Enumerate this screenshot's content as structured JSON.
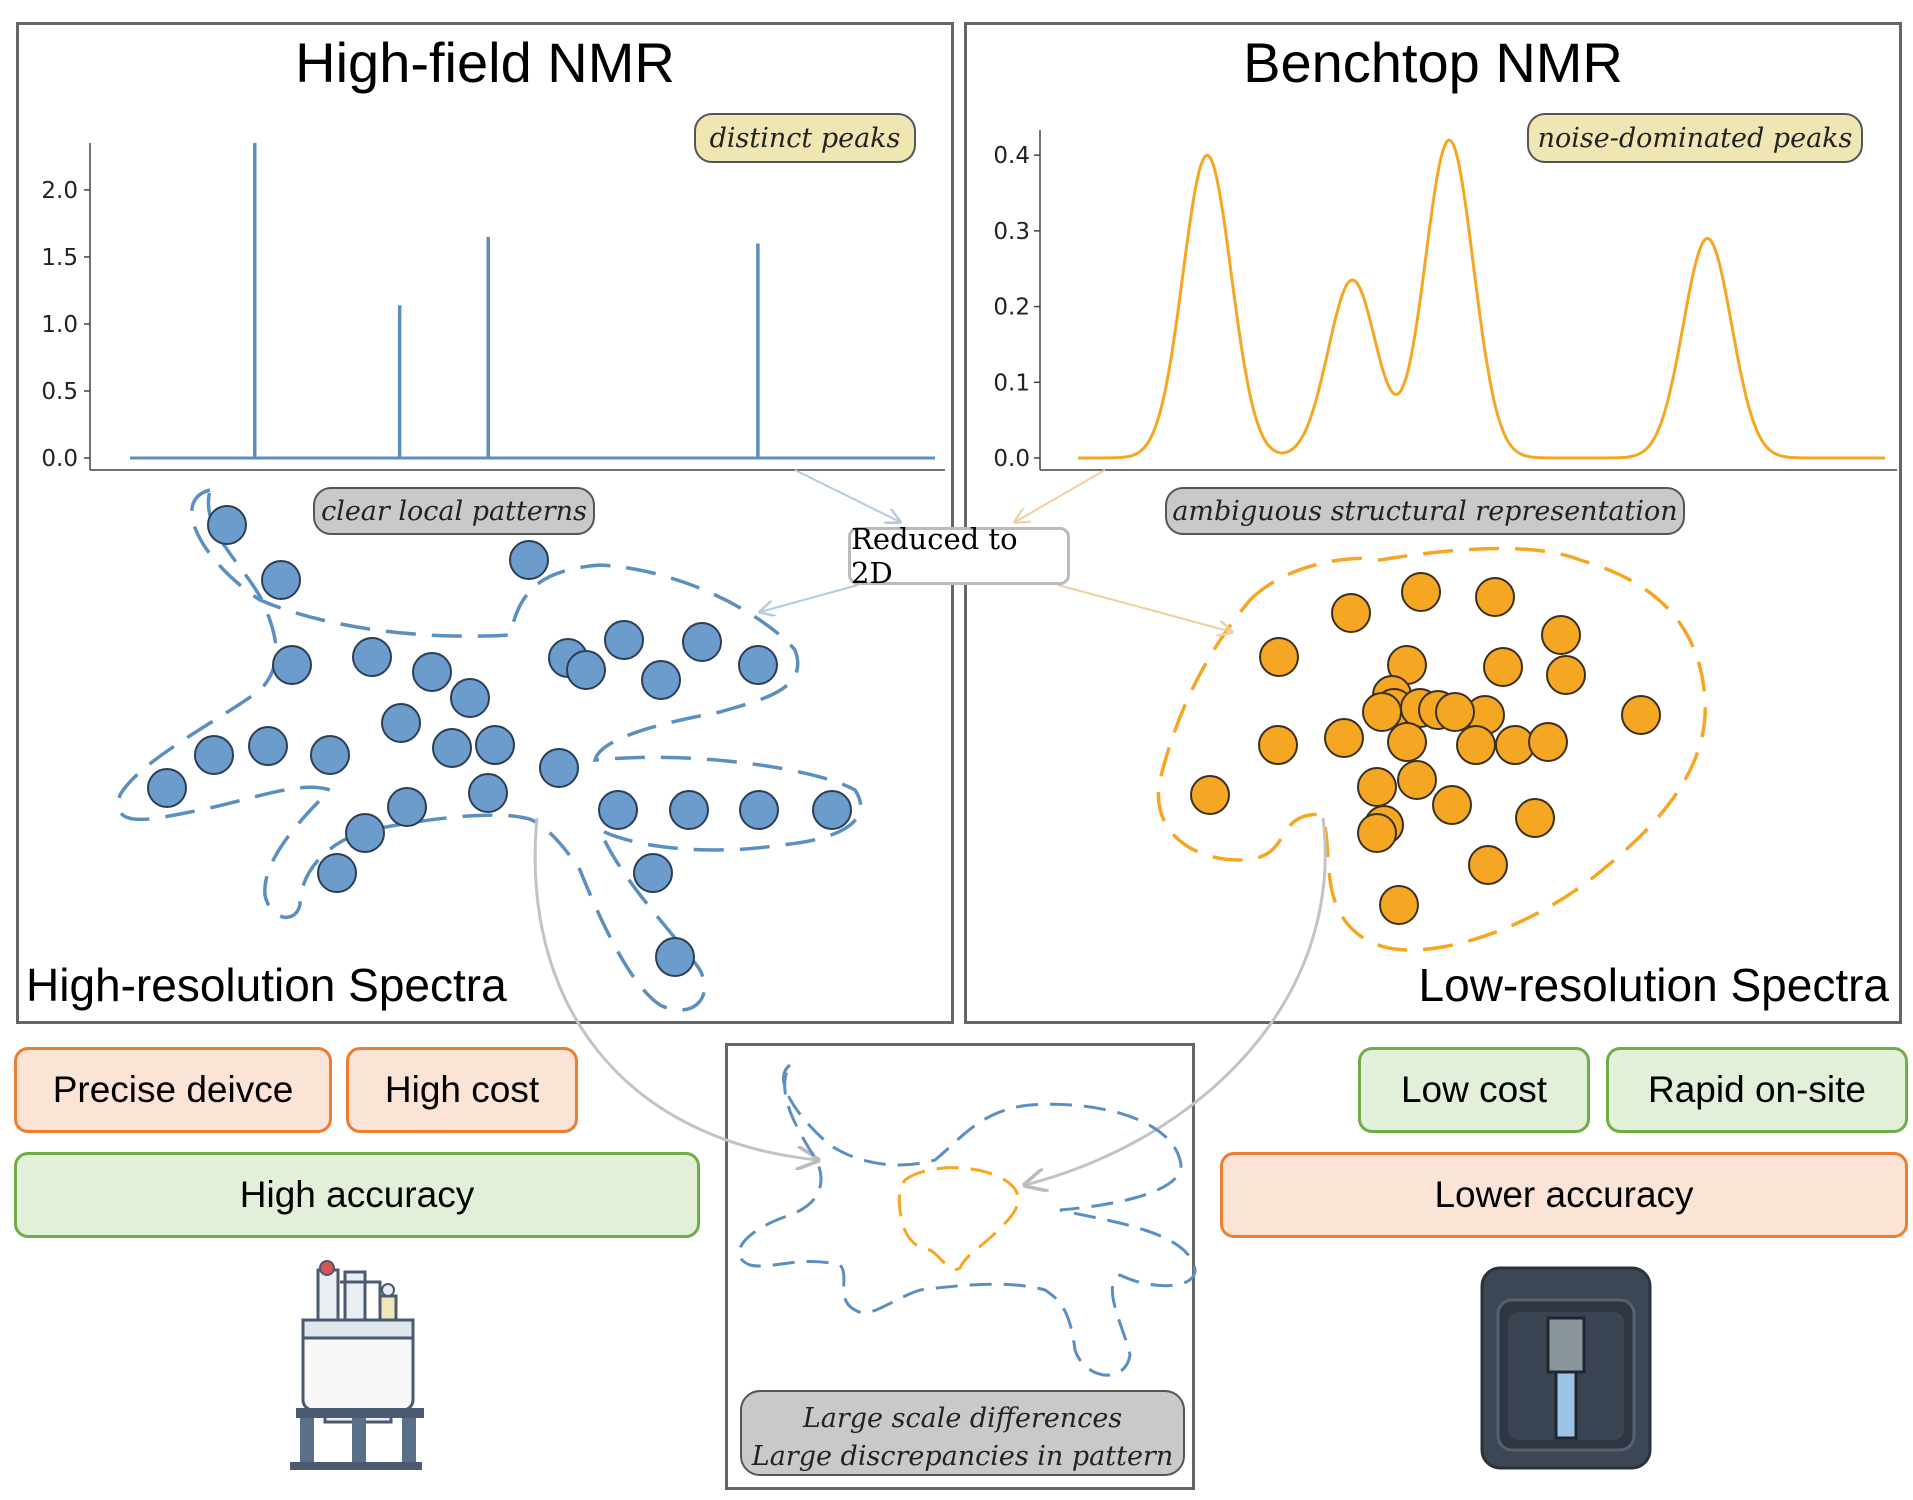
{
  "left_panel": {
    "title": "High-field NMR",
    "subtitle": "High-resolution Spectra",
    "tag_peaks": "distinct peaks",
    "tag_patterns": "clear local patterns"
  },
  "right_panel": {
    "title": "Benchtop NMR",
    "subtitle": "Low-resolution Spectra",
    "tag_peaks": "noise-dominated peaks",
    "tag_patterns": "ambiguous structural representation"
  },
  "center": {
    "reduced_label": "Reduced to 2D",
    "note_line1": "Large scale differences",
    "note_line2": "Large discrepancies in pattern"
  },
  "left_pills": {
    "precise": "Precise deivce",
    "cost": "High cost",
    "accuracy": "High accuracy"
  },
  "right_pills": {
    "cost": "Low cost",
    "rapid": "Rapid on-site",
    "accuracy": "Lower accuracy"
  },
  "colors": {
    "blue": "#5b8fc0",
    "orange": "#f5a623",
    "orange_pill_fill": "#fbe3d6",
    "green_pill_fill": "#e2f0d9"
  },
  "chart_data": [
    {
      "type": "line",
      "style": "stick spectrum",
      "yticks": [
        "0.0",
        "0.5",
        "1.0",
        "1.5",
        "2.0"
      ],
      "ylim": [
        0,
        2.35
      ],
      "xlim": [
        0,
        10
      ],
      "peaks": [
        {
          "x": 1.55,
          "y": 2.35
        },
        {
          "x": 3.35,
          "y": 1.14
        },
        {
          "x": 4.45,
          "y": 1.65
        },
        {
          "x": 7.8,
          "y": 1.6
        }
      ],
      "series_color": "#5b8fc0"
    },
    {
      "type": "line",
      "style": "broad peaks",
      "yticks": [
        "0.0",
        "0.1",
        "0.2",
        "0.3",
        "0.4"
      ],
      "ylim": [
        0,
        0.42
      ],
      "xlim": [
        0,
        10
      ],
      "peaks": [
        {
          "x": 1.6,
          "y": 0.4
        },
        {
          "x": 3.4,
          "y": 0.235
        },
        {
          "x": 4.6,
          "y": 0.42
        },
        {
          "x": 7.8,
          "y": 0.29
        }
      ],
      "series_color": "#f5a623"
    }
  ]
}
